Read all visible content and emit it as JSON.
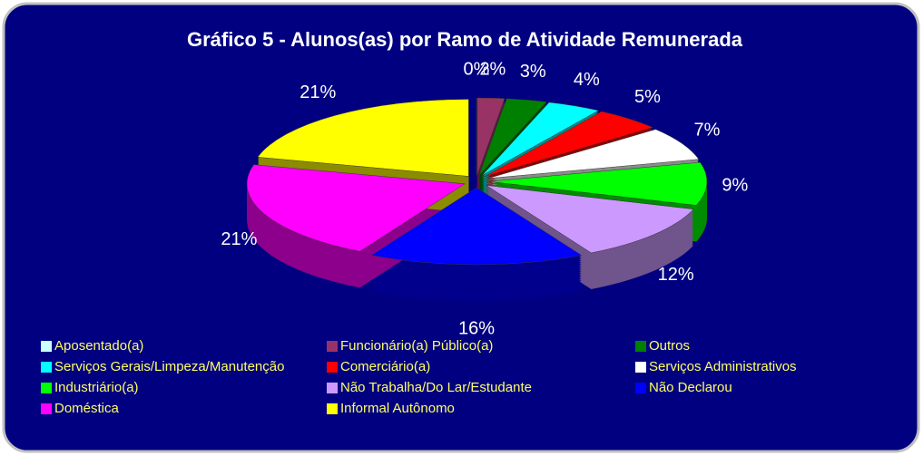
{
  "chart_data": {
    "type": "pie",
    "title": "Gráfico 5 - Alunos(as) por Ramo de Atividade Remunerada",
    "categories": [
      "Aposentado(a)",
      "Funcionário(a) Público(a)",
      "Outros",
      "Serviços Gerais/Limpeza/Manutenção",
      "Comerciário(a)",
      "Serviços Administrativos",
      "Industriário(a)",
      "Não Trabalha/Do Lar/Estudante",
      "Não Declarou",
      "Doméstica",
      "Informal Autônomo"
    ],
    "values": [
      0,
      2,
      3,
      4,
      5,
      7,
      9,
      12,
      16,
      21,
      21
    ],
    "value_labels": [
      "0%",
      "2%",
      "3%",
      "4%",
      "5%",
      "7%",
      "9%",
      "12%",
      "16%",
      "21%",
      "21%"
    ],
    "colors": [
      "#ccffff",
      "#993366",
      "#008000",
      "#00ffff",
      "#ff0000",
      "#ffffff",
      "#00ff00",
      "#cc99ff",
      "#0000ff",
      "#ff00ff",
      "#ffff00"
    ],
    "legend": "bottom"
  }
}
